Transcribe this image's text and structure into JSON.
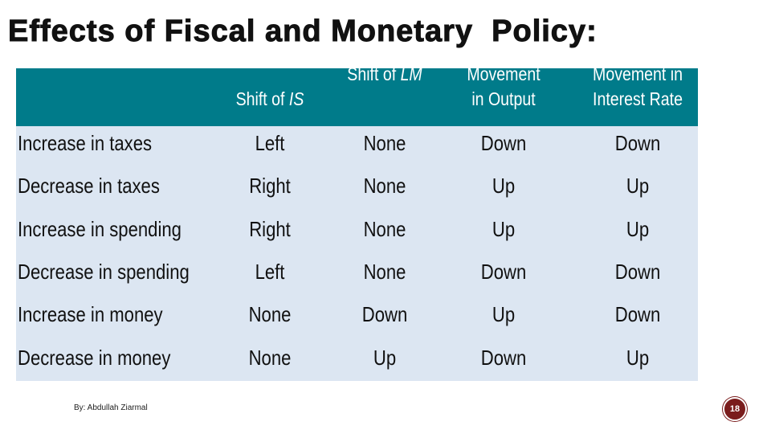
{
  "title": "Effects of Fiscal and Monetary  Policy:",
  "table": {
    "header": [
      [],
      [
        "Shift of ",
        "IS"
      ],
      [
        "Shift of ",
        "LM"
      ],
      [
        "Movement",
        "in Output"
      ],
      [
        "Movement in",
        "Interest Rate"
      ]
    ],
    "rows": [
      [
        "Increase in taxes",
        "Left",
        "None",
        "Down",
        "Down"
      ],
      [
        "Decrease in taxes",
        "Right",
        "None",
        "Up",
        "Up"
      ],
      [
        "Increase in spending",
        "Right",
        "None",
        "Up",
        "Up"
      ],
      [
        "Decrease in spending",
        "Left",
        "None",
        "Down",
        "Down"
      ],
      [
        "Increase in money",
        "None",
        "Down",
        "Up",
        "Down"
      ],
      [
        "Decrease in money",
        "None",
        "Up",
        "Down",
        "Up"
      ]
    ]
  },
  "footer": {
    "author": "By: Abdullah Ziarmal",
    "page_number": "18"
  }
}
